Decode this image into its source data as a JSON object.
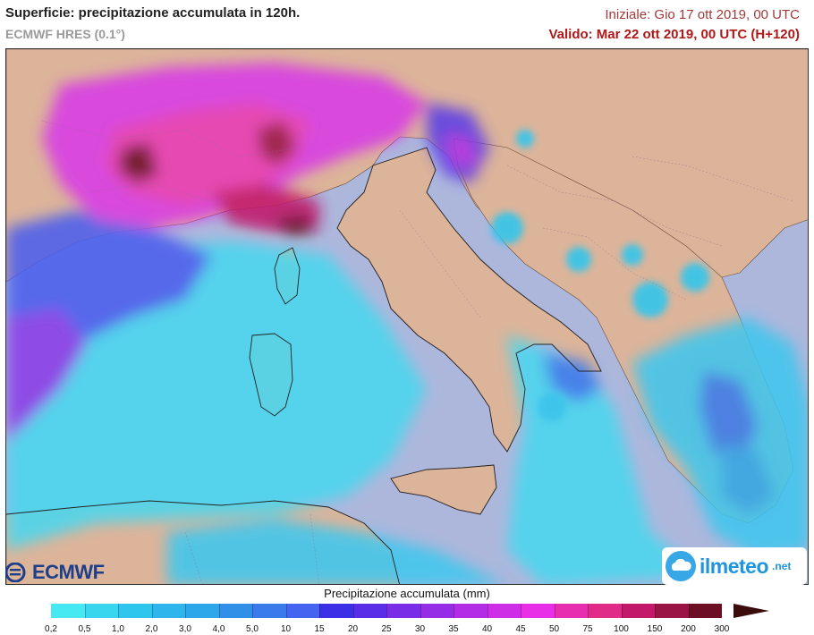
{
  "header": {
    "title": "Superficie: precipitazione accumulata in 120h.",
    "subtitle": "ECMWF HRES (0.1°)",
    "init_label": "Iniziale: Gio 17 ott 2019, 00 UTC",
    "valid_label": "Valido: Mar 22 ott 2019, 00 UTC (H+120)"
  },
  "logos": {
    "left": "ECMWF",
    "right_brand": "ilmeteo",
    "right_tld": ".net"
  },
  "legend": {
    "title": "Precipitazione accumulata (mm)",
    "ticks": [
      "0,2",
      "0,5",
      "1,0",
      "2,0",
      "3,0",
      "4,0",
      "5,0",
      "10",
      "15",
      "20",
      "25",
      "30",
      "35",
      "40",
      "45",
      "50",
      "75",
      "100",
      "150",
      "200",
      "300"
    ],
    "colors": [
      "#46e8f2",
      "#3ad6f0",
      "#2fc6ee",
      "#2eb6ec",
      "#2ea6ea",
      "#3090e8",
      "#3a7aeb",
      "#4565f0",
      "#3c2fe6",
      "#5a2ee6",
      "#7a2de6",
      "#962de6",
      "#b42de6",
      "#ce2ee6",
      "#e82ee6",
      "#e82eb0",
      "#e02b88",
      "#c2196a",
      "#9a1545",
      "#6d0f24"
    ],
    "arrow_color": "#3a0c0c"
  },
  "map": {
    "sea_color": "#adb7dc",
    "land_color": "#dcb49a",
    "region": "Mediterraneo centrale - Italia"
  }
}
